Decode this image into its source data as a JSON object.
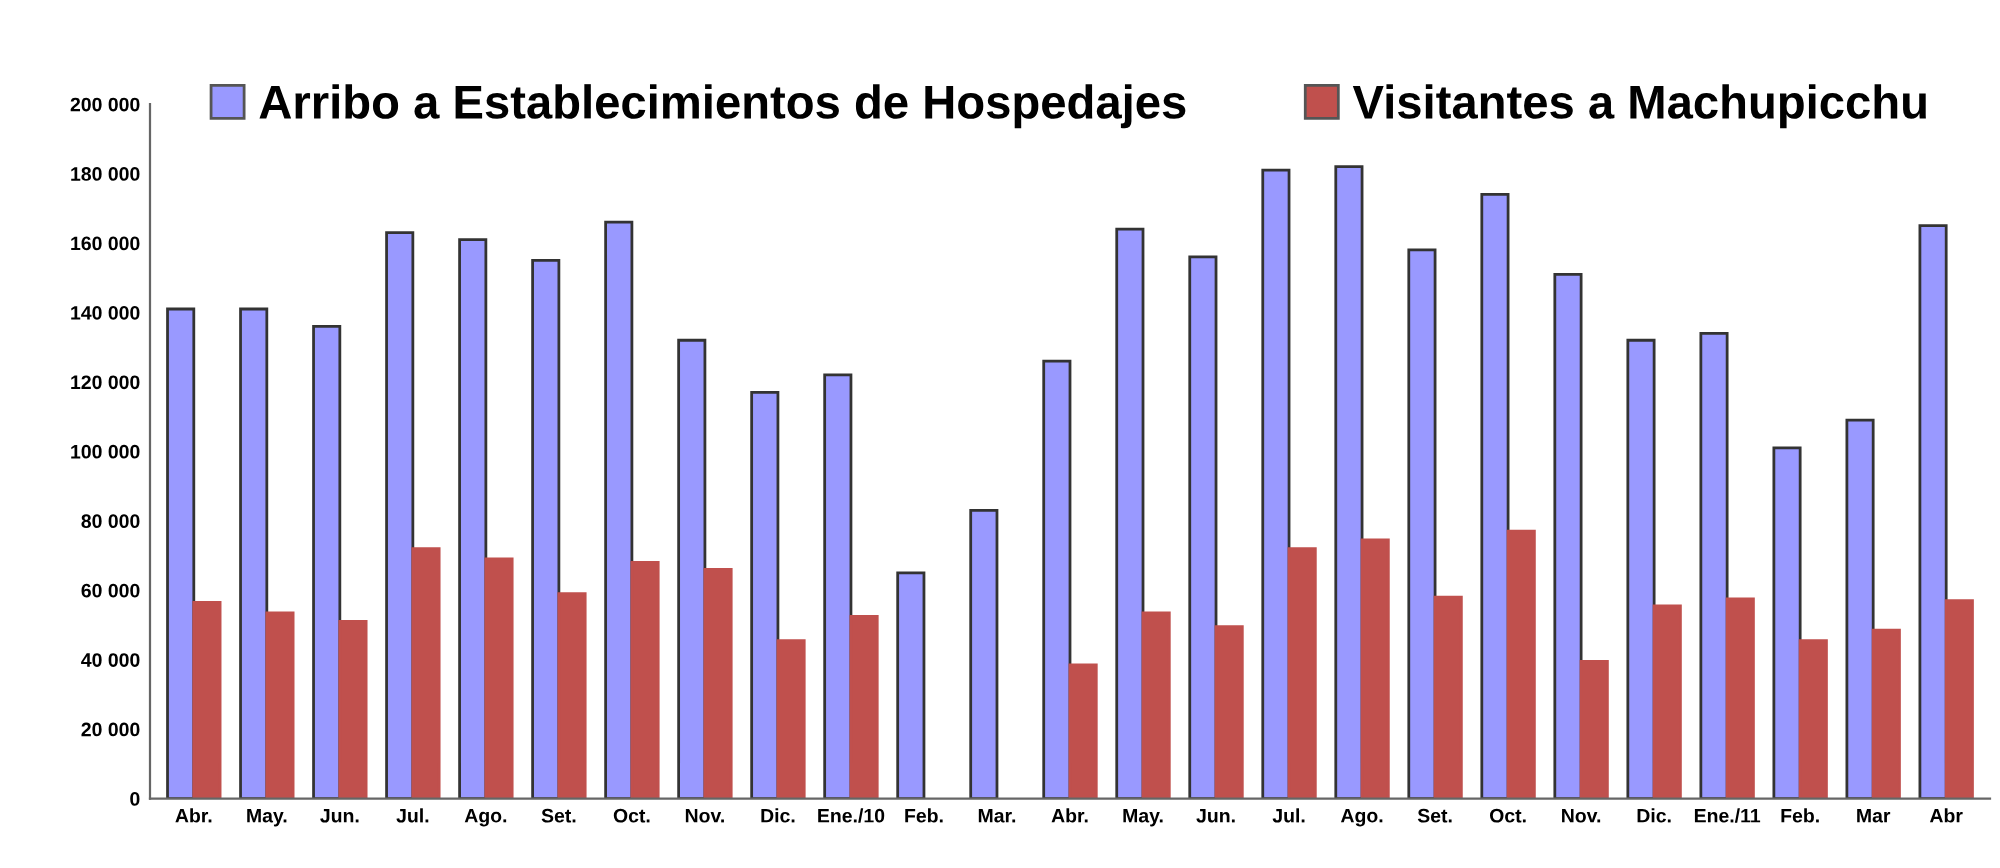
{
  "chart_data": {
    "type": "bar",
    "categories": [
      "Abr.",
      "May.",
      "Jun.",
      "Jul.",
      "Ago.",
      "Set.",
      "Oct.",
      "Nov.",
      "Dic.",
      "Ene./10",
      "Feb.",
      "Mar.",
      "Abr.",
      "May.",
      "Jun.",
      "Jul.",
      "Ago.",
      "Set.",
      "Oct.",
      "Nov.",
      "Dic.",
      "Ene./11",
      "Feb.",
      "Mar",
      "Abr"
    ],
    "series": [
      {
        "name": "Arribo a Establecimientos de Hospedajes",
        "color": "#9999ff",
        "values": [
          141000,
          141000,
          136000,
          163000,
          161000,
          155000,
          166000,
          132000,
          117000,
          122000,
          65000,
          83000,
          126000,
          164000,
          156000,
          181000,
          182000,
          158000,
          174000,
          151000,
          132000,
          134000,
          101000,
          109000,
          165000
        ]
      },
      {
        "name": "Visitantes a Machupicchu",
        "color": "#c0504d",
        "values": [
          56500,
          53500,
          51000,
          72000,
          69000,
          59000,
          68000,
          66000,
          45500,
          52500,
          null,
          null,
          38500,
          53500,
          49500,
          72000,
          74500,
          58000,
          77000,
          39500,
          55500,
          57500,
          45500,
          48500,
          57000
        ]
      }
    ],
    "ylim": [
      0,
      200000
    ],
    "yticks": [
      {
        "value": 0,
        "label": "0"
      },
      {
        "value": 20000,
        "label": "20 000"
      },
      {
        "value": 40000,
        "label": "40 000"
      },
      {
        "value": 60000,
        "label": "60 000"
      },
      {
        "value": 80000,
        "label": "80 000"
      },
      {
        "value": 100000,
        "label": "100 000"
      },
      {
        "value": 120000,
        "label": "120 000"
      },
      {
        "value": 140000,
        "label": "140 000"
      },
      {
        "value": 160000,
        "label": "160 000"
      },
      {
        "value": 180000,
        "label": "180 000"
      },
      {
        "value": 200000,
        "label": "200 000"
      }
    ],
    "grid": false,
    "legend": "top"
  }
}
